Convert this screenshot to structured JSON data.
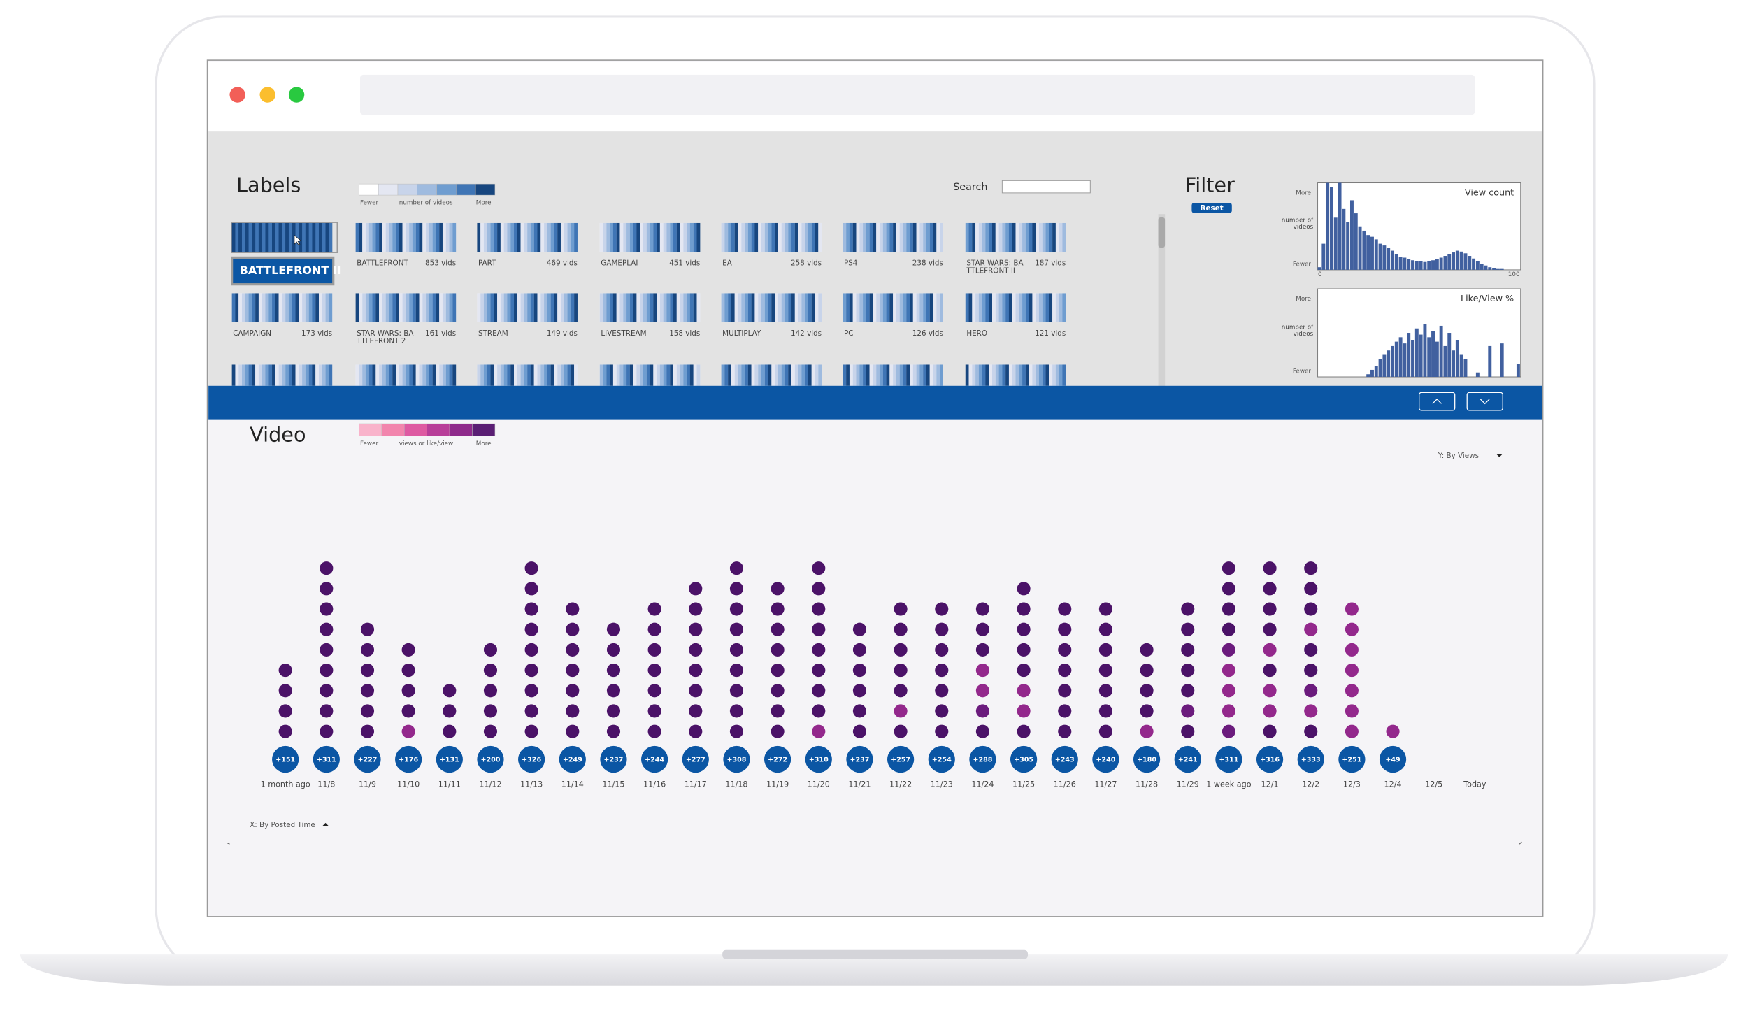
{
  "labels_panel": {
    "title": "Labels",
    "legend": {
      "colors": [
        "#ffffff",
        "#e4e7f2",
        "#c8d4ea",
        "#9fbbdf",
        "#6f9dd0",
        "#3f75b5",
        "#17467f"
      ],
      "fewer": "Fewer",
      "caption": "number of videos",
      "more": "More"
    },
    "search_label": "Search",
    "selected_tooltip": "BATTLEFRONT II",
    "cards": [
      {
        "name": "BATTLEFRONT",
        "count": "853 vids"
      },
      {
        "name": "PART",
        "count": "469 vids"
      },
      {
        "name": "GAMEPLAI",
        "count": "451 vids"
      },
      {
        "name": "EA",
        "count": "258 vids"
      },
      {
        "name": "PS4",
        "count": "238 vids"
      },
      {
        "name": "STAR WARS: BATTLEFRONT II",
        "count": "187 vids"
      },
      {
        "name": "CAMPAIGN",
        "count": "173 vids"
      },
      {
        "name": "STAR WARS: BATTLEFRONT 2",
        "count": "161 vids"
      },
      {
        "name": "STREAM",
        "count": "149 vids"
      },
      {
        "name": "LIVESTREAM",
        "count": "158 vids"
      },
      {
        "name": "MULTIPLAY",
        "count": "142 vids"
      },
      {
        "name": "PC",
        "count": "126 vids"
      },
      {
        "name": "HERO",
        "count": "121 vids"
      }
    ]
  },
  "filter_panel": {
    "title": "Filter",
    "reset": "Reset",
    "histograms": [
      {
        "title": "View count",
        "more": "More",
        "caption": "number of videos",
        "fewer": "Fewer",
        "x_labels": [
          "0",
          "100"
        ],
        "color": "#41609f",
        "bars": [
          3,
          30,
          100,
          95,
          60,
          100,
          70,
          55,
          80,
          65,
          50,
          45,
          40,
          38,
          35,
          30,
          28,
          25,
          22,
          18,
          15,
          14,
          12,
          11,
          10,
          10,
          9,
          10,
          11,
          12,
          14,
          16,
          18,
          20,
          22,
          21,
          19,
          16,
          13,
          10,
          7,
          5,
          3,
          2,
          1,
          1,
          0,
          0,
          0,
          0
        ]
      },
      {
        "title": "Like/View %",
        "more": "More",
        "caption": "number of videos",
        "fewer": "Fewer",
        "color": "#41609f",
        "bars": [
          0,
          0,
          0,
          0,
          0,
          0,
          0,
          0,
          0,
          0,
          0,
          0,
          3,
          8,
          12,
          20,
          25,
          30,
          35,
          40,
          45,
          38,
          50,
          42,
          55,
          48,
          60,
          45,
          52,
          40,
          58,
          35,
          50,
          30,
          42,
          25,
          20,
          0,
          0,
          5,
          0,
          0,
          35,
          0,
          0,
          38,
          0,
          0,
          0,
          15
        ]
      }
    ]
  },
  "video_panel": {
    "title": "Video",
    "legend": {
      "colors": [
        "#f9b3cb",
        "#f285ad",
        "#de5aa2",
        "#b83e99",
        "#8e2a8b",
        "#5a1e74"
      ],
      "fewer": "Fewer",
      "caption": "views or like/view",
      "more": "More"
    },
    "y_selector": "Y: By Views",
    "x_selector": "X: By Posted Time",
    "badge_color": "#0b56a4",
    "columns": [
      {
        "date": "1 month ago",
        "badge": "+151",
        "dots": [
          "#4b1268",
          "#4b1268",
          "#4b1268",
          "#4b1268"
        ]
      },
      {
        "date": "11/8",
        "badge": "+311",
        "dots": [
          "#4b1268",
          "#4b1268",
          "#4b1268",
          "#4b1268",
          "#4b1268",
          "#4b1268",
          "#4b1268",
          "#4b1268",
          "#4b1268"
        ]
      },
      {
        "date": "11/9",
        "badge": "+227",
        "dots": [
          "#4b1268",
          "#4b1268",
          "#4b1268",
          "#4b1268",
          "#4b1268",
          "#4b1268"
        ]
      },
      {
        "date": "11/10",
        "badge": "+176",
        "dots": [
          "#93288c",
          "#4b1268",
          "#4b1268",
          "#4b1268",
          "#4b1268"
        ]
      },
      {
        "date": "11/11",
        "badge": "+131",
        "dots": [
          "#4b1268",
          "#4b1268",
          "#4b1268"
        ]
      },
      {
        "date": "11/12",
        "badge": "+200",
        "dots": [
          "#4b1268",
          "#4b1268",
          "#4b1268",
          "#4b1268",
          "#4b1268"
        ]
      },
      {
        "date": "11/13",
        "badge": "+326",
        "dots": [
          "#4b1268",
          "#4b1268",
          "#4b1268",
          "#4b1268",
          "#4b1268",
          "#4b1268",
          "#4b1268",
          "#4b1268",
          "#4b1268"
        ]
      },
      {
        "date": "11/14",
        "badge": "+249",
        "dots": [
          "#4b1268",
          "#4b1268",
          "#4b1268",
          "#4b1268",
          "#4b1268",
          "#4b1268",
          "#4b1268"
        ]
      },
      {
        "date": "11/15",
        "badge": "+237",
        "dots": [
          "#4b1268",
          "#4b1268",
          "#4b1268",
          "#4b1268",
          "#4b1268",
          "#4b1268"
        ]
      },
      {
        "date": "11/16",
        "badge": "+244",
        "dots": [
          "#4b1268",
          "#4b1268",
          "#4b1268",
          "#4b1268",
          "#4b1268",
          "#4b1268",
          "#4b1268"
        ]
      },
      {
        "date": "11/17",
        "badge": "+277",
        "dots": [
          "#4b1268",
          "#4b1268",
          "#4b1268",
          "#4b1268",
          "#4b1268",
          "#4b1268",
          "#4b1268",
          "#4b1268"
        ]
      },
      {
        "date": "11/18",
        "badge": "+308",
        "dots": [
          "#4b1268",
          "#4b1268",
          "#4b1268",
          "#4b1268",
          "#4b1268",
          "#4b1268",
          "#4b1268",
          "#4b1268",
          "#4b1268"
        ]
      },
      {
        "date": "11/19",
        "badge": "+272",
        "dots": [
          "#4b1268",
          "#4b1268",
          "#4b1268",
          "#4b1268",
          "#4b1268",
          "#4b1268",
          "#4b1268",
          "#4b1268"
        ]
      },
      {
        "date": "11/20",
        "badge": "+310",
        "dots": [
          "#93288c",
          "#4b1268",
          "#4b1268",
          "#4b1268",
          "#4b1268",
          "#4b1268",
          "#4b1268",
          "#4b1268",
          "#4b1268"
        ]
      },
      {
        "date": "11/21",
        "badge": "+237",
        "dots": [
          "#4b1268",
          "#4b1268",
          "#4b1268",
          "#4b1268",
          "#4b1268",
          "#4b1268"
        ]
      },
      {
        "date": "11/22",
        "badge": "+257",
        "dots": [
          "#4b1268",
          "#93288c",
          "#4b1268",
          "#4b1268",
          "#4b1268",
          "#4b1268",
          "#4b1268"
        ]
      },
      {
        "date": "11/23",
        "badge": "+254",
        "dots": [
          "#4b1268",
          "#4b1268",
          "#4b1268",
          "#4b1268",
          "#4b1268",
          "#4b1268",
          "#4b1268"
        ]
      },
      {
        "date": "11/24",
        "badge": "+288",
        "dots": [
          "#4b1268",
          "#6b1b7d",
          "#93288c",
          "#93288c",
          "#4b1268",
          "#4b1268",
          "#4b1268"
        ]
      },
      {
        "date": "11/25",
        "badge": "+305",
        "dots": [
          "#4b1268",
          "#93288c",
          "#93288c",
          "#4b1268",
          "#4b1268",
          "#4b1268",
          "#4b1268",
          "#4b1268"
        ]
      },
      {
        "date": "11/26",
        "badge": "+243",
        "dots": [
          "#4b1268",
          "#4b1268",
          "#4b1268",
          "#4b1268",
          "#4b1268",
          "#4b1268",
          "#4b1268"
        ]
      },
      {
        "date": "11/27",
        "badge": "+240",
        "dots": [
          "#4b1268",
          "#4b1268",
          "#4b1268",
          "#4b1268",
          "#4b1268",
          "#4b1268",
          "#4b1268"
        ]
      },
      {
        "date": "11/28",
        "badge": "+180",
        "dots": [
          "#93288c",
          "#4b1268",
          "#4b1268",
          "#4b1268",
          "#4b1268"
        ]
      },
      {
        "date": "11/29",
        "badge": "+241",
        "dots": [
          "#4b1268",
          "#6b1b7d",
          "#4b1268",
          "#4b1268",
          "#4b1268",
          "#4b1268",
          "#4b1268"
        ]
      },
      {
        "date": "1 week ago",
        "badge": "+311",
        "dots": [
          "#6b1b7d",
          "#93288c",
          "#93288c",
          "#93288c",
          "#6b1b7d",
          "#4b1268",
          "#4b1268",
          "#4b1268",
          "#4b1268"
        ]
      },
      {
        "date": "12/1",
        "badge": "+316",
        "dots": [
          "#4b1268",
          "#93288c",
          "#93288c",
          "#4b1268",
          "#93288c",
          "#4b1268",
          "#4b1268",
          "#4b1268",
          "#4b1268"
        ]
      },
      {
        "date": "12/2",
        "badge": "+333",
        "dots": [
          "#4b1268",
          "#93288c",
          "#6b1b7d",
          "#4b1268",
          "#4b1268",
          "#93288c",
          "#4b1268",
          "#4b1268",
          "#4b1268"
        ]
      },
      {
        "date": "12/3",
        "badge": "+251",
        "dots": [
          "#93288c",
          "#93288c",
          "#93288c",
          "#93288c",
          "#93288c",
          "#93288c",
          "#93288c"
        ]
      },
      {
        "date": "12/4",
        "badge": "+49",
        "dots": [
          "#93288c"
        ]
      },
      {
        "date": "12/5",
        "badge": null,
        "dots": []
      },
      {
        "date": "Today",
        "badge": null,
        "dots": []
      }
    ]
  }
}
